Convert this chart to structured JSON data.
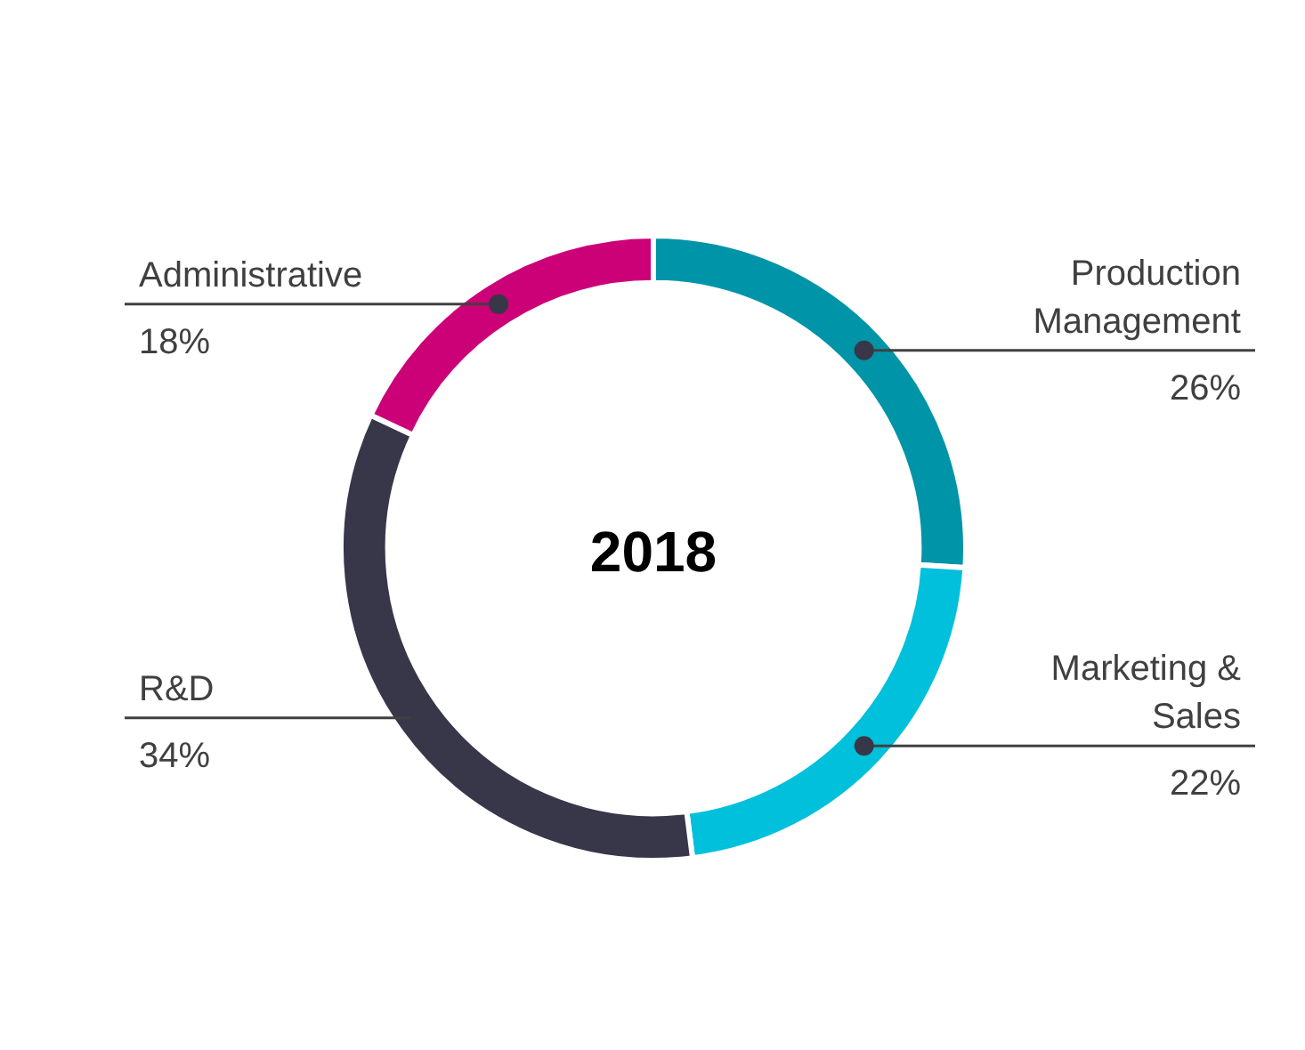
{
  "chart_data": {
    "type": "donut",
    "title": "2018",
    "categories": [
      "Production Management",
      "Marketing & Sales",
      "R&D",
      "Administrative"
    ],
    "values": [
      26,
      22,
      34,
      18
    ],
    "colors": [
      "#0094a8",
      "#00c0dc",
      "#383649",
      "#cc0077"
    ],
    "value_labels": [
      "26%",
      "22%",
      "34%",
      "18%"
    ],
    "legend": false
  }
}
